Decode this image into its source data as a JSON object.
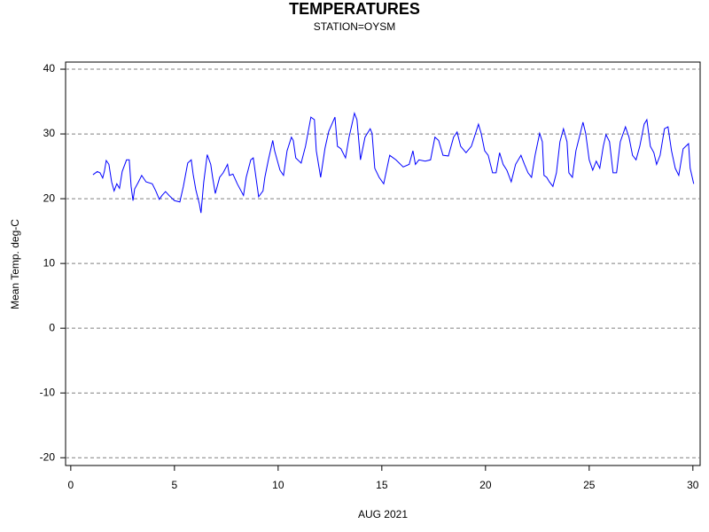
{
  "chart_data": {
    "type": "line",
    "title": "TEMPERATURES",
    "subtitle": "STATION=OYSM",
    "x_label": "AUG 2021",
    "y_label": "Mean Temp. deg-C",
    "xlim": [
      -0.25,
      30.35
    ],
    "xticks": [
      0,
      5,
      10,
      15,
      20,
      25,
      30
    ],
    "ylim": [
      -21.2,
      41.1
    ],
    "yticks": [
      -20,
      -10,
      0,
      10,
      20,
      30,
      40
    ],
    "grid": true,
    "series": [
      {
        "name": "Mean Temp. deg-C",
        "color": "#0000ff",
        "x": [
          1.07,
          1.28,
          1.41,
          1.54,
          1.62,
          1.71,
          1.84,
          1.97,
          2.09,
          2.22,
          2.35,
          2.48,
          2.69,
          2.82,
          2.91,
          3.0,
          3.08,
          3.25,
          3.42,
          3.63,
          3.93,
          4.1,
          4.27,
          4.4,
          4.57,
          4.74,
          5.0,
          5.26,
          5.43,
          5.64,
          5.81,
          5.9,
          6.03,
          6.2,
          6.28,
          6.41,
          6.58,
          6.75,
          6.84,
          6.97,
          7.18,
          7.35,
          7.56,
          7.65,
          7.82,
          8.03,
          8.33,
          8.46,
          8.68,
          8.8,
          8.93,
          9.06,
          9.27,
          9.36,
          9.53,
          9.74,
          9.83,
          10.09,
          10.26,
          10.43,
          10.64,
          10.73,
          10.85,
          11.11,
          11.32,
          11.58,
          11.75,
          11.84,
          12.05,
          12.26,
          12.44,
          12.74,
          12.86,
          13.03,
          13.25,
          13.42,
          13.68,
          13.8,
          13.97,
          14.19,
          14.44,
          14.53,
          14.66,
          14.87,
          15.09,
          15.38,
          15.68,
          16.03,
          16.32,
          16.5,
          16.62,
          16.79,
          17.09,
          17.35,
          17.56,
          17.74,
          17.95,
          18.21,
          18.46,
          18.63,
          18.8,
          19.06,
          19.32,
          19.66,
          19.79,
          19.96,
          20.13,
          20.34,
          20.51,
          20.68,
          20.85,
          21.03,
          21.24,
          21.45,
          21.71,
          21.88,
          22.05,
          22.22,
          22.39,
          22.61,
          22.74,
          22.82,
          22.95,
          23.08,
          23.25,
          23.42,
          23.59,
          23.76,
          23.93,
          24.02,
          24.19,
          24.36,
          24.57,
          24.7,
          24.83,
          25.0,
          25.17,
          25.34,
          25.51,
          25.68,
          25.81,
          25.98,
          26.15,
          26.32,
          26.5,
          26.75,
          26.92,
          27.09,
          27.26,
          27.44,
          27.65,
          27.78,
          27.95,
          28.12,
          28.25,
          28.42,
          28.63,
          28.8,
          28.97,
          29.15,
          29.32,
          29.53,
          29.79,
          29.87,
          30.04
        ],
        "values": [
          23.7,
          24.2,
          24.0,
          23.2,
          24.2,
          25.9,
          25.3,
          22.6,
          21.2,
          22.3,
          21.6,
          24.2,
          26.0,
          26.0,
          21.9,
          19.7,
          21.5,
          22.5,
          23.6,
          22.6,
          22.3,
          21.2,
          19.9,
          20.5,
          21.1,
          20.5,
          19.7,
          19.5,
          21.9,
          25.5,
          26.0,
          23.8,
          21.4,
          19.2,
          17.8,
          22.5,
          26.8,
          25.3,
          23.3,
          20.8,
          23.3,
          24.0,
          25.3,
          23.6,
          23.8,
          22.3,
          20.5,
          23.3,
          26.0,
          26.3,
          23.3,
          20.3,
          21.2,
          23.3,
          26.0,
          29.0,
          27.4,
          24.4,
          23.6,
          27.4,
          29.5,
          29.0,
          26.3,
          25.5,
          28.1,
          32.6,
          32.2,
          27.4,
          23.3,
          27.8,
          30.4,
          32.6,
          28.1,
          27.7,
          26.3,
          29.5,
          33.2,
          32.2,
          26.0,
          29.5,
          30.8,
          30.1,
          24.7,
          23.3,
          22.3,
          26.7,
          26.0,
          24.9,
          25.3,
          27.4,
          25.3,
          26.0,
          25.8,
          26.0,
          29.5,
          29.0,
          26.7,
          26.6,
          29.5,
          30.3,
          28.1,
          27.1,
          28.1,
          31.5,
          30.1,
          27.4,
          26.7,
          24.0,
          24.0,
          27.1,
          25.3,
          24.4,
          22.6,
          25.3,
          26.7,
          25.3,
          24.0,
          23.3,
          26.7,
          30.1,
          28.8,
          23.6,
          23.3,
          22.6,
          21.9,
          24.0,
          28.8,
          30.8,
          28.8,
          24.0,
          23.3,
          27.4,
          30.1,
          31.8,
          30.1,
          26.0,
          24.4,
          25.8,
          24.7,
          28.1,
          29.9,
          28.8,
          24.0,
          24.0,
          28.8,
          31.1,
          29.5,
          26.7,
          26.0,
          28.1,
          31.5,
          32.2,
          28.1,
          27.1,
          25.3,
          26.7,
          30.8,
          31.1,
          27.4,
          24.7,
          23.6,
          27.7,
          28.5,
          24.7,
          22.3
        ]
      }
    ]
  }
}
